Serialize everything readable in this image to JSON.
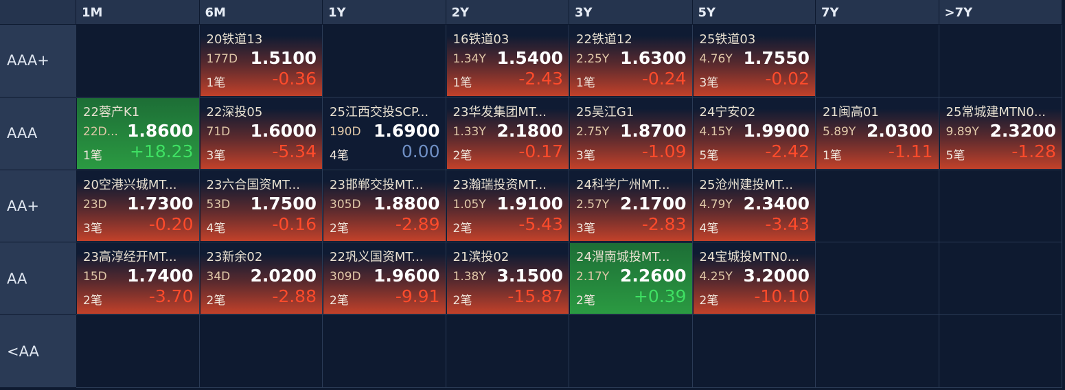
{
  "columns": [
    "1M",
    "6M",
    "1Y",
    "2Y",
    "3Y",
    "5Y",
    "7Y",
    ">7Y"
  ],
  "rows": [
    {
      "label": "AAA+",
      "cells": [
        null,
        {
          "name": "20铁道13",
          "term": "177D",
          "yield": "1.5100",
          "count": "1笔",
          "change": "-0.36"
        },
        null,
        {
          "name": "16铁道03",
          "term": "1.34Y",
          "yield": "1.5400",
          "count": "1笔",
          "change": "-2.43"
        },
        {
          "name": "22铁道12",
          "term": "2.25Y",
          "yield": "1.6300",
          "count": "1笔",
          "change": "-0.24"
        },
        {
          "name": "25铁道03",
          "term": "4.76Y",
          "yield": "1.7550",
          "count": "3笔",
          "change": "-0.02"
        },
        null,
        null
      ]
    },
    {
      "label": "AAA",
      "cells": [
        {
          "name": "22蓉产K1",
          "term": "22D...",
          "yield": "1.8600",
          "count": "1笔",
          "change": "+18.23"
        },
        {
          "name": "22深投05",
          "term": "71D",
          "yield": "1.6000",
          "count": "3笔",
          "change": "-5.34"
        },
        {
          "name": "25江西交投SCP...",
          "term": "190D",
          "yield": "1.6900",
          "count": "4笔",
          "change": "0.00"
        },
        {
          "name": "23华发集团MT...",
          "term": "1.33Y",
          "yield": "2.1800",
          "count": "2笔",
          "change": "-0.17"
        },
        {
          "name": "25吴江G1",
          "term": "2.75Y",
          "yield": "1.8700",
          "count": "3笔",
          "change": "-1.09"
        },
        {
          "name": "24宁安02",
          "term": "4.15Y",
          "yield": "1.9900",
          "count": "5笔",
          "change": "-2.42"
        },
        {
          "name": "21闽高01",
          "term": "5.89Y",
          "yield": "2.0300",
          "count": "1笔",
          "change": "-1.11"
        },
        {
          "name": "25常城建MTN0...",
          "term": "9.89Y",
          "yield": "2.3200",
          "count": "5笔",
          "change": "-1.28"
        }
      ]
    },
    {
      "label": "AA+",
      "cells": [
        {
          "name": "20空港兴城MT...",
          "term": "23D",
          "yield": "1.7300",
          "count": "3笔",
          "change": "-0.20"
        },
        {
          "name": "23六合国资MT...",
          "term": "53D",
          "yield": "1.7500",
          "count": "4笔",
          "change": "-0.16"
        },
        {
          "name": "23邯郸交投MT...",
          "term": "305D",
          "yield": "1.8800",
          "count": "2笔",
          "change": "-2.89"
        },
        {
          "name": "23瀚瑞投资MT...",
          "term": "1.05Y",
          "yield": "1.9100",
          "count": "2笔",
          "change": "-5.43"
        },
        {
          "name": "24科学广州MT...",
          "term": "2.57Y",
          "yield": "2.1700",
          "count": "3笔",
          "change": "-2.83"
        },
        {
          "name": "25沧州建投MT...",
          "term": "4.79Y",
          "yield": "2.3400",
          "count": "4笔",
          "change": "-3.43"
        },
        null,
        null
      ]
    },
    {
      "label": "AA",
      "cells": [
        {
          "name": "23高淳经开MT...",
          "term": "15D",
          "yield": "1.7400",
          "count": "2笔",
          "change": "-3.70"
        },
        {
          "name": "23新余02",
          "term": "34D",
          "yield": "2.0200",
          "count": "2笔",
          "change": "-2.88"
        },
        {
          "name": "22巩义国资MT...",
          "term": "309D",
          "yield": "1.9600",
          "count": "2笔",
          "change": "-9.91"
        },
        {
          "name": "21滨投02",
          "term": "1.38Y",
          "yield": "3.1500",
          "count": "2笔",
          "change": "-15.87"
        },
        {
          "name": "24渭南城投MT...",
          "term": "2.17Y",
          "yield": "2.2600",
          "count": "2笔",
          "change": "+0.39"
        },
        {
          "name": "24宝城投MTN0...",
          "term": "4.25Y",
          "yield": "3.2000",
          "count": "2笔",
          "change": "-10.10"
        },
        null,
        null
      ]
    },
    {
      "label": "<AA",
      "cells": [
        null,
        null,
        null,
        null,
        null,
        null,
        null,
        null
      ]
    }
  ]
}
